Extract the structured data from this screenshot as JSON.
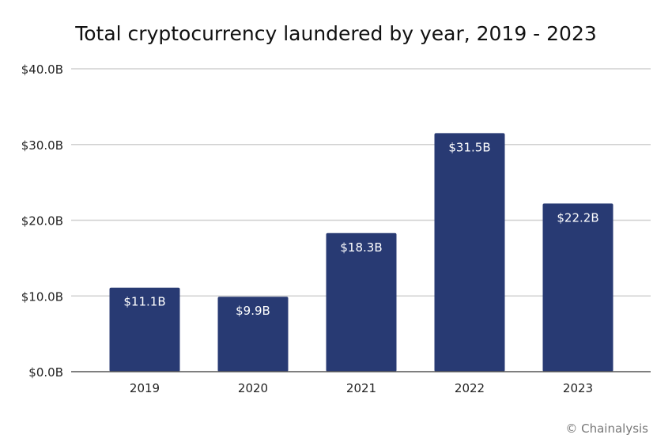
{
  "chart_data": {
    "type": "bar",
    "title": "Total cryptocurrency laundered by year, 2019 - 2023",
    "categories": [
      "2019",
      "2020",
      "2021",
      "2022",
      "2023"
    ],
    "values": [
      11.1,
      9.9,
      18.3,
      31.5,
      22.2
    ],
    "data_labels": [
      "$11.1B",
      "$9.9B",
      "$18.3B",
      "$31.5B",
      "$22.2B"
    ],
    "yticks": [
      0,
      10,
      20,
      30,
      40
    ],
    "ytick_labels": [
      "$0.0B",
      "$10.0B",
      "$20.0B",
      "$30.0B",
      "$40.0B"
    ],
    "ylim": [
      0,
      40
    ],
    "xlabel": "",
    "ylabel": "",
    "grid": true,
    "bar_color": "#283a73",
    "credit": "© Chainalysis"
  }
}
